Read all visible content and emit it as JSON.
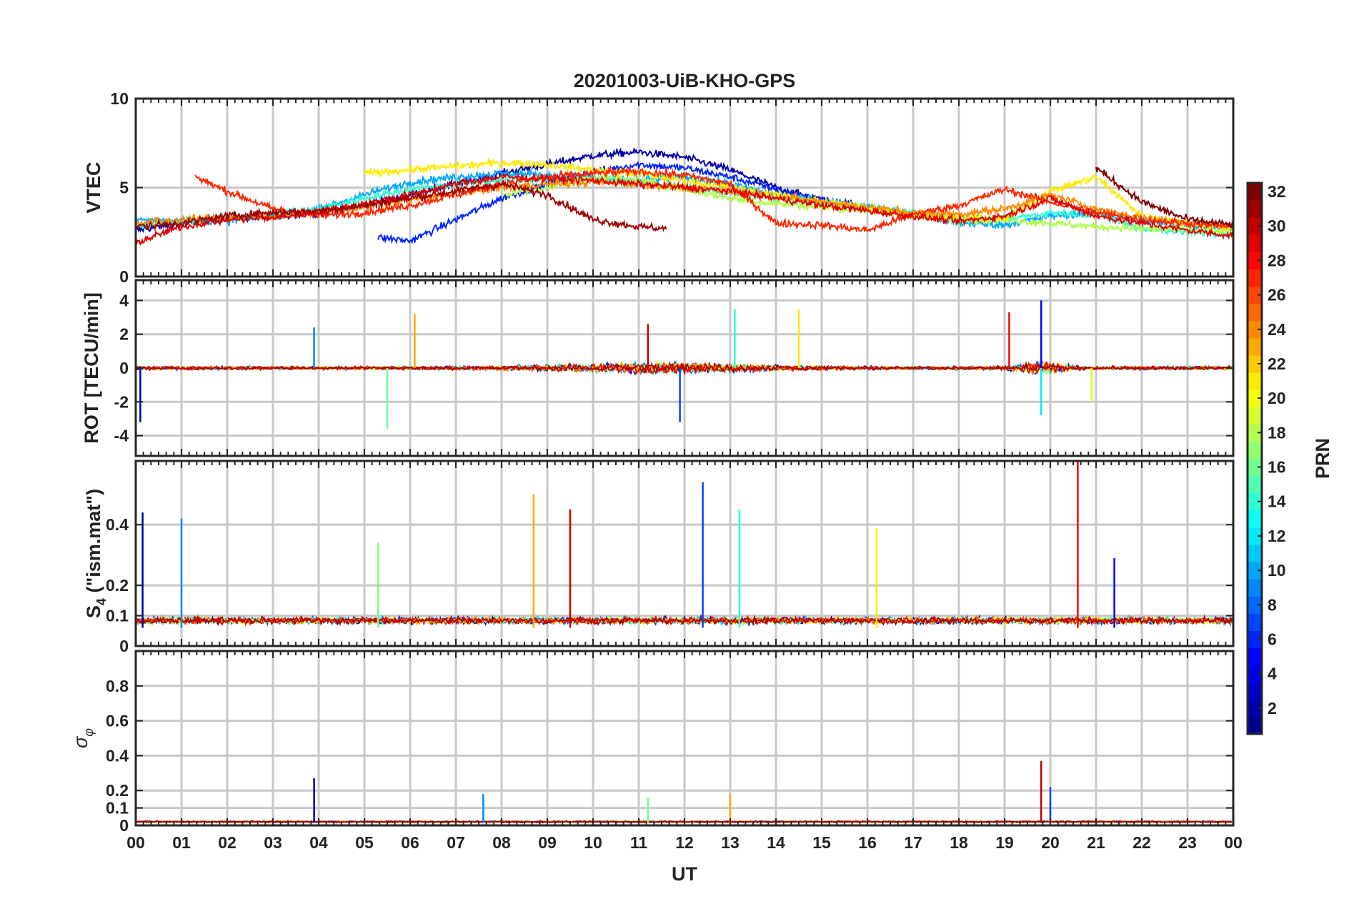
{
  "chart_data": {
    "title": "20201003-UiB-KHO-GPS",
    "type": "line",
    "xlabel": "UT",
    "x_tick_labels": [
      "00",
      "01",
      "02",
      "03",
      "04",
      "05",
      "06",
      "07",
      "08",
      "09",
      "10",
      "11",
      "12",
      "13",
      "14",
      "15",
      "16",
      "17",
      "18",
      "19",
      "20",
      "21",
      "22",
      "23",
      "00"
    ],
    "xlim": [
      0,
      24
    ],
    "colorbar": {
      "label": "PRN",
      "range": [
        1,
        32
      ],
      "tick_values": [
        2,
        4,
        6,
        8,
        10,
        12,
        14,
        16,
        18,
        20,
        22,
        24,
        26,
        28,
        30,
        32
      ],
      "tick_labels": [
        "2",
        "4",
        "6",
        "8",
        "10",
        "12",
        "14",
        "16",
        "18",
        "20",
        "22",
        "24",
        "26",
        "28",
        "30",
        "32"
      ],
      "colormap": "jet",
      "colors": [
        "#00008f",
        "#0000ff",
        "#0080ff",
        "#00ffff",
        "#80ff80",
        "#ffff00",
        "#ff8000",
        "#ff0000",
        "#800000"
      ]
    },
    "panels": [
      {
        "id": "vtec",
        "ylabel": "VTEC",
        "ylim": [
          0,
          10
        ],
        "tick_values": [
          0,
          5,
          10
        ],
        "tick_labels": [
          "0",
          "5",
          "10"
        ],
        "description_series": [
          {
            "name": "PRN 2",
            "x": [
              0,
              1,
              2,
              3,
              4,
              5,
              6,
              7,
              8,
              9,
              10,
              11,
              12,
              13,
              14,
              15,
              16
            ],
            "values": [
              2.6,
              3.0,
              3.3,
              3.4,
              3.6,
              4.0,
              4.6,
              5.2,
              5.8,
              6.3,
              6.8,
              7.0,
              6.7,
              6.0,
              5.0,
              4.3,
              3.8
            ]
          },
          {
            "name": "PRN 6",
            "x": [
              5.3,
              6,
              7,
              8,
              9,
              10,
              11,
              12,
              13,
              14,
              15,
              16
            ],
            "values": [
              2.2,
              2.0,
              3.2,
              4.4,
              5.2,
              5.9,
              6.3,
              6.1,
              5.6,
              4.9,
              4.3,
              3.9
            ]
          },
          {
            "name": "PRN 10",
            "x": [
              0,
              2,
              4,
              5,
              6,
              7,
              8,
              9,
              10,
              11,
              12,
              13,
              14,
              15,
              16,
              17,
              18,
              19,
              20,
              21,
              22,
              23,
              24
            ],
            "values": [
              3.2,
              3.1,
              3.8,
              4.6,
              5.3,
              5.6,
              5.8,
              5.7,
              5.5,
              5.4,
              5.6,
              5.2,
              4.6,
              4.2,
              3.9,
              3.5,
              3.0,
              2.9,
              3.4,
              3.6,
              3.1,
              2.9,
              2.7
            ]
          },
          {
            "name": "PRN 14",
            "x": [
              0,
              2,
              4,
              5,
              6,
              7,
              8,
              9,
              10,
              11,
              12,
              13,
              14,
              15,
              16,
              17,
              18,
              19,
              20,
              21,
              22,
              23,
              24
            ],
            "values": [
              2.9,
              3.3,
              3.8,
              4.4,
              4.9,
              5.2,
              5.4,
              5.5,
              5.5,
              5.3,
              5.0,
              4.7,
              4.4,
              4.2,
              3.9,
              3.6,
              3.3,
              3.2,
              3.6,
              3.5,
              2.7,
              2.5,
              2.3
            ]
          },
          {
            "name": "PRN 18",
            "x": [
              8,
              9,
              10,
              11,
              12,
              13,
              14,
              15,
              16,
              17,
              18,
              19,
              20,
              21,
              22,
              23,
              24
            ],
            "values": [
              4.6,
              5.0,
              5.6,
              5.4,
              4.9,
              4.4,
              4.1,
              3.9,
              3.7,
              3.5,
              3.2,
              3.2,
              3.0,
              2.8,
              2.7,
              2.6,
              2.5
            ]
          },
          {
            "name": "PRN 21",
            "x": [
              5,
              6,
              7,
              8,
              9,
              10,
              11,
              12,
              13,
              14,
              15,
              16,
              17,
              18,
              19,
              20,
              21,
              22,
              23,
              24
            ],
            "values": [
              5.8,
              6.0,
              6.2,
              6.4,
              6.3,
              6.0,
              5.8,
              5.4,
              5.0,
              4.6,
              4.2,
              3.9,
              3.5,
              3.3,
              3.2,
              4.8,
              5.6,
              3.4,
              3.0,
              2.7
            ]
          },
          {
            "name": "PRN 24",
            "x": [
              0,
              1,
              2,
              3,
              4,
              5,
              6,
              7,
              8,
              9,
              10,
              11,
              12,
              13,
              14,
              15,
              16,
              17,
              18,
              19,
              20,
              21,
              22,
              23,
              24
            ],
            "values": [
              3.0,
              3.2,
              3.3,
              3.4,
              3.6,
              3.9,
              4.3,
              4.7,
              5.0,
              5.2,
              5.3,
              5.2,
              5.0,
              4.8,
              4.5,
              4.2,
              3.9,
              3.6,
              3.5,
              3.8,
              4.6,
              3.8,
              3.3,
              3.0,
              2.8
            ]
          },
          {
            "name": "PRN 27",
            "x": [
              1.3,
              2,
              3,
              4,
              5,
              6,
              7,
              8,
              9,
              10,
              11,
              12,
              13,
              14,
              15,
              16,
              17,
              18,
              19,
              20,
              21,
              22,
              23,
              24
            ],
            "values": [
              5.6,
              4.8,
              3.8,
              3.4,
              3.6,
              4.0,
              4.6,
              5.2,
              5.6,
              5.8,
              5.9,
              5.7,
              5.2,
              3.0,
              2.9,
              2.6,
              3.5,
              4.0,
              4.9,
              4.2,
              3.6,
              3.2,
              3.0,
              2.8
            ]
          },
          {
            "name": "PRN 29",
            "x": [
              0,
              1,
              2,
              3,
              4,
              5,
              6,
              7,
              8,
              9,
              10,
              11,
              12,
              13,
              14,
              15,
              16,
              17,
              18,
              19,
              20,
              21,
              22,
              23,
              24
            ],
            "values": [
              1.9,
              2.8,
              3.2,
              3.3,
              3.6,
              4.1,
              4.6,
              5.2,
              5.6,
              5.5,
              5.4,
              5.2,
              5.0,
              4.8,
              4.4,
              4.0,
              3.7,
              3.4,
              3.1,
              3.4,
              4.4,
              3.4,
              3.0,
              2.6,
              2.3
            ]
          },
          {
            "name": "PRN 31",
            "x": [
              0,
              1,
              2,
              3,
              4,
              5,
              6,
              7,
              8,
              9,
              10,
              11,
              11.6
            ],
            "values": [
              2.8,
              3.0,
              3.4,
              3.6,
              3.7,
              4.0,
              4.4,
              4.8,
              5.2,
              4.6,
              3.2,
              2.8,
              2.7
            ]
          },
          {
            "name": "PRN 32",
            "x": [
              21,
              22,
              23,
              24
            ],
            "values": [
              6.1,
              4.2,
              3.2,
              2.9
            ]
          }
        ]
      },
      {
        "id": "rot",
        "ylabel": "ROT [TECU/min]",
        "ylim": [
          -5.2,
          5.2
        ],
        "tick_values": [
          -4,
          -2,
          0,
          2,
          4
        ],
        "tick_labels": [
          "-4",
          "-2",
          "0",
          "2",
          "4"
        ],
        "peak_events": [
          {
            "x": 0.1,
            "value": -3.2
          },
          {
            "x": 3.9,
            "value": 2.4
          },
          {
            "x": 5.5,
            "value": -3.6
          },
          {
            "x": 6.1,
            "value": 3.2
          },
          {
            "x": 11.2,
            "value": 2.6
          },
          {
            "x": 11.9,
            "value": -3.2
          },
          {
            "x": 13.1,
            "value": 3.5
          },
          {
            "x": 14.5,
            "value": 3.5
          },
          {
            "x": 19.1,
            "value": 3.3
          },
          {
            "x": 19.8,
            "value": 4.0
          },
          {
            "x": 19.8,
            "value": -2.8
          },
          {
            "x": 20.9,
            "value": -2.0
          }
        ]
      },
      {
        "id": "s4",
        "ylabel": "S4 (\"ism.mat\")",
        "ylabel_main": "S",
        "ylabel_sub": "4",
        "ylabel_rest": " (\"ism.mat\")",
        "ylim": [
          0,
          0.61
        ],
        "tick_values": [
          0,
          0.1,
          0.2,
          0.4
        ],
        "tick_labels": [
          "0",
          "0.1",
          "0.2",
          "0.4"
        ],
        "peak_events": [
          {
            "x": 0.15,
            "value": 0.44
          },
          {
            "x": 1.0,
            "value": 0.42
          },
          {
            "x": 5.3,
            "value": 0.34
          },
          {
            "x": 8.7,
            "value": 0.5
          },
          {
            "x": 9.5,
            "value": 0.45
          },
          {
            "x": 12.4,
            "value": 0.54
          },
          {
            "x": 13.2,
            "value": 0.45
          },
          {
            "x": 16.2,
            "value": 0.39
          },
          {
            "x": 20.6,
            "value": 0.61
          },
          {
            "x": 21.4,
            "value": 0.29
          }
        ]
      },
      {
        "id": "sigma",
        "ylabel": "σ φ",
        "ylabel_main": "σ",
        "ylabel_sub": "φ",
        "ylim": [
          0,
          1.0
        ],
        "tick_values": [
          0,
          0.1,
          0.2,
          0.4,
          0.6,
          0.8
        ],
        "tick_labels": [
          "0",
          "0.1",
          "0.2",
          "0.4",
          "0.6",
          "0.8"
        ],
        "peak_events": [
          {
            "x": 3.9,
            "value": 0.27
          },
          {
            "x": 7.6,
            "value": 0.18
          },
          {
            "x": 11.2,
            "value": 0.16
          },
          {
            "x": 13.0,
            "value": 0.18
          },
          {
            "x": 19.8,
            "value": 0.37
          },
          {
            "x": 20.0,
            "value": 0.22
          }
        ]
      }
    ]
  }
}
